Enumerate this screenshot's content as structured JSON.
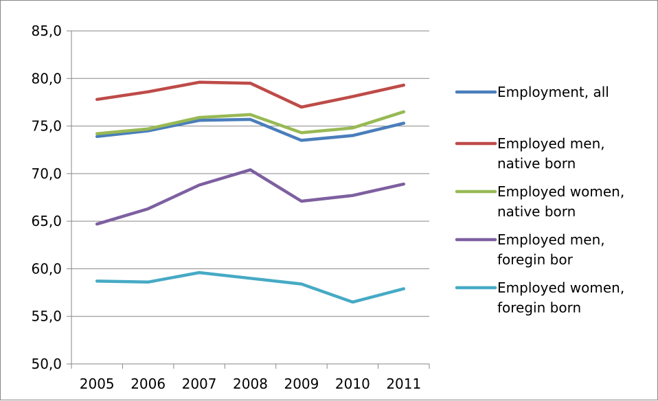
{
  "chart_data": {
    "type": "line",
    "title": "",
    "xlabel": "",
    "ylabel": "",
    "categories": [
      "2005",
      "2006",
      "2007",
      "2008",
      "2009",
      "2010",
      "2011"
    ],
    "ylim": [
      50,
      85
    ],
    "yticks": [
      "50,0",
      "55,0",
      "60,0",
      "65,0",
      "70,0",
      "75,0",
      "80,0",
      "85,0"
    ],
    "grid": true,
    "legend_position": "right",
    "series": [
      {
        "name": "Employment, all",
        "legend_lines": [
          "Employment, all"
        ],
        "color": "#4A7EBB",
        "values": [
          73.9,
          74.5,
          75.6,
          75.7,
          73.5,
          74.0,
          75.3
        ]
      },
      {
        "name": "Employed men, native born",
        "legend_lines": [
          "Employed men,",
          "native born"
        ],
        "color": "#BE4B48",
        "values": [
          77.8,
          78.6,
          79.6,
          79.5,
          77.0,
          78.1,
          79.3
        ]
      },
      {
        "name": "Employed women, native born",
        "legend_lines": [
          "Employed women,",
          "native born"
        ],
        "color": "#98B954",
        "values": [
          74.2,
          74.7,
          75.9,
          76.2,
          74.3,
          74.8,
          76.5
        ]
      },
      {
        "name": "Employed men, foregin bor",
        "legend_lines": [
          "Employed men,",
          "foregin bor"
        ],
        "color": "#7D60A0",
        "values": [
          64.7,
          66.3,
          68.8,
          70.4,
          67.1,
          67.7,
          68.9
        ]
      },
      {
        "name": "Employed women, foregin born",
        "legend_lines": [
          "Employed women,",
          "foregin born"
        ],
        "color": "#46AAC5",
        "values": [
          58.7,
          58.6,
          59.6,
          59.0,
          58.4,
          56.5,
          57.9
        ]
      }
    ]
  }
}
